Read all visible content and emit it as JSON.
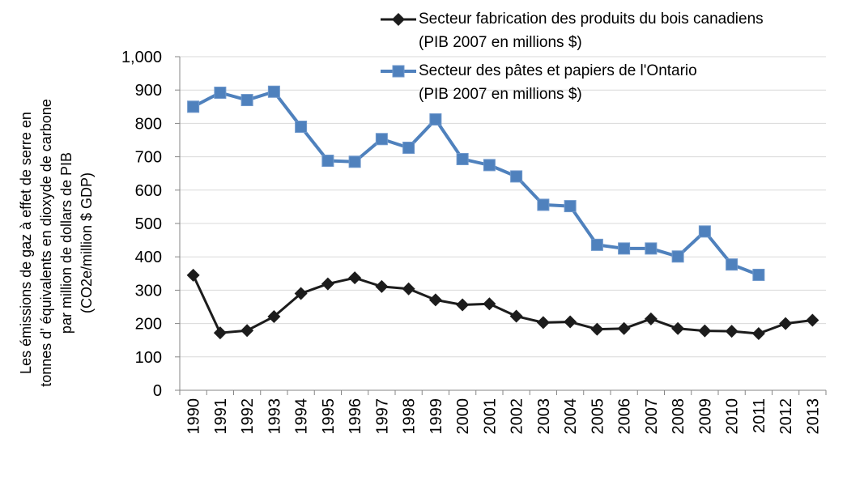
{
  "chart_data": {
    "type": "line",
    "y_axis_label": "Les émissions de gaz à effet de serre en\ntonnes d’ équivalents en dioxyde de carbone\npar million de dollars de PIB\n(CO2e/million $ GDP)",
    "categories": [
      "1990",
      "1991",
      "1992",
      "1993",
      "1994",
      "1995",
      "1996",
      "1997",
      "1998",
      "1999",
      "2000",
      "2001",
      "2002",
      "2003",
      "2004",
      "2005",
      "2006",
      "2007",
      "2008",
      "2009",
      "2010",
      "2011",
      "2012",
      "2013"
    ],
    "series": [
      {
        "name": "Secteur fabrication des produits du bois canadiens\n(PIB 2007 en millions $)",
        "color": "#1c1c1c",
        "marker": "diamond",
        "values": [
          345,
          172,
          179,
          221,
          290,
          319,
          337,
          311,
          304,
          271,
          256,
          259,
          222,
          203,
          205,
          183,
          185,
          214,
          185,
          178,
          177,
          170,
          200,
          210
        ]
      },
      {
        "name": "Secteur des pâtes et papiers de l'Ontario\n(PIB 2007 en millions $)",
        "color": "#4f81bd",
        "marker": "square",
        "values": [
          850,
          892,
          870,
          895,
          790,
          688,
          685,
          753,
          727,
          812,
          693,
          675,
          641,
          556,
          552,
          436,
          425,
          425,
          401,
          476,
          377,
          346,
          null,
          null
        ]
      }
    ],
    "ylim": [
      0,
      1000
    ],
    "yticks": [
      0,
      100,
      200,
      300,
      400,
      500,
      600,
      700,
      800,
      900,
      {
        "value": 1000,
        "label": "1,000"
      }
    ],
    "grid": true
  }
}
